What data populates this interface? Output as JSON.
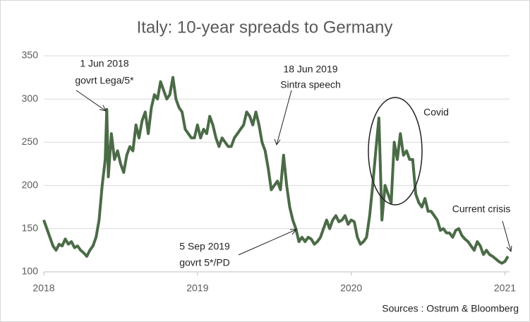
{
  "chart_data": {
    "type": "line",
    "title": "Italy: 10-year spreads to Germany",
    "source": "Sources : Ostrum & Bloomberg",
    "annotations": [
      "1 Jun 2018",
      "govrt Lega/5*",
      "18 Jun 2019",
      "Sintra speech",
      "5 Sep 2019",
      "govrt 5*/PD",
      "Covid",
      "Current crisis"
    ],
    "x": [
      2018.0,
      2018.02,
      2018.04,
      2018.06,
      2018.08,
      2018.1,
      2018.12,
      2018.14,
      2018.16,
      2018.18,
      2018.2,
      2018.22,
      2018.24,
      2018.26,
      2018.28,
      2018.3,
      2018.32,
      2018.34,
      2018.36,
      2018.38,
      2018.4,
      2018.41,
      2018.42,
      2018.44,
      2018.46,
      2018.48,
      2018.5,
      2018.52,
      2018.54,
      2018.56,
      2018.58,
      2018.6,
      2018.62,
      2018.64,
      2018.66,
      2018.68,
      2018.7,
      2018.72,
      2018.74,
      2018.76,
      2018.78,
      2018.8,
      2018.82,
      2018.84,
      2018.86,
      2018.88,
      2018.9,
      2018.92,
      2018.94,
      2018.96,
      2018.98,
      2019.0,
      2019.02,
      2019.04,
      2019.06,
      2019.08,
      2019.1,
      2019.12,
      2019.14,
      2019.16,
      2019.18,
      2019.2,
      2019.22,
      2019.24,
      2019.26,
      2019.28,
      2019.3,
      2019.32,
      2019.34,
      2019.36,
      2019.38,
      2019.4,
      2019.42,
      2019.44,
      2019.46,
      2019.48,
      2019.5,
      2019.52,
      2019.54,
      2019.56,
      2019.58,
      2019.6,
      2019.62,
      2019.64,
      2019.66,
      2019.68,
      2019.7,
      2019.72,
      2019.74,
      2019.76,
      2019.78,
      2019.8,
      2019.82,
      2019.84,
      2019.86,
      2019.88,
      2019.9,
      2019.92,
      2019.94,
      2019.96,
      2019.98,
      2020.0,
      2020.02,
      2020.04,
      2020.06,
      2020.08,
      2020.1,
      2020.12,
      2020.14,
      2020.16,
      2020.18,
      2020.2,
      2020.22,
      2020.24,
      2020.26,
      2020.28,
      2020.3,
      2020.32,
      2020.34,
      2020.36,
      2020.38,
      2020.4,
      2020.42,
      2020.44,
      2020.46,
      2020.48,
      2020.5,
      2020.52,
      2020.54,
      2020.56,
      2020.58,
      2020.6,
      2020.62,
      2020.64,
      2020.66,
      2020.68,
      2020.7,
      2020.72,
      2020.74,
      2020.76,
      2020.78,
      2020.8,
      2020.82,
      2020.84,
      2020.86,
      2020.88,
      2020.9,
      2020.92,
      2020.94,
      2020.96,
      2020.98,
      2021.0,
      2021.02
    ],
    "series": [
      {
        "color": "#4b6b47",
        "values": [
          160,
          150,
          140,
          130,
          125,
          132,
          130,
          138,
          132,
          135,
          128,
          130,
          125,
          122,
          118,
          125,
          130,
          140,
          160,
          200,
          230,
          288,
          210,
          260,
          230,
          240,
          225,
          215,
          235,
          245,
          240,
          270,
          255,
          275,
          285,
          260,
          290,
          305,
          300,
          320,
          310,
          300,
          305,
          325,
          300,
          290,
          285,
          265,
          260,
          255,
          255,
          270,
          255,
          265,
          260,
          280,
          270,
          255,
          245,
          255,
          250,
          245,
          245,
          255,
          260,
          265,
          270,
          285,
          280,
          270,
          285,
          270,
          250,
          240,
          220,
          195,
          200,
          205,
          195,
          235,
          200,
          175,
          160,
          150,
          135,
          140,
          135,
          140,
          138,
          132,
          135,
          140,
          150,
          160,
          150,
          160,
          165,
          158,
          160,
          165,
          155,
          160,
          158,
          140,
          132,
          135,
          140,
          165,
          200,
          240,
          278,
          160,
          200,
          190,
          180,
          250,
          230,
          260,
          235,
          240,
          230,
          230,
          190,
          180,
          175,
          185,
          170,
          170,
          165,
          160,
          148,
          150,
          145,
          145,
          140,
          148,
          150,
          142,
          138,
          135,
          130,
          125,
          135,
          130,
          120,
          125,
          120,
          118,
          115,
          112,
          110,
          112,
          118
        ]
      }
    ],
    "xlim": [
      2018,
      2021.03
    ],
    "xticks": [
      2018,
      2019,
      2020,
      2021
    ],
    "ylim": [
      100,
      350
    ],
    "yticks": [
      100,
      150,
      200,
      250,
      300,
      350
    ],
    "grid": true
  }
}
